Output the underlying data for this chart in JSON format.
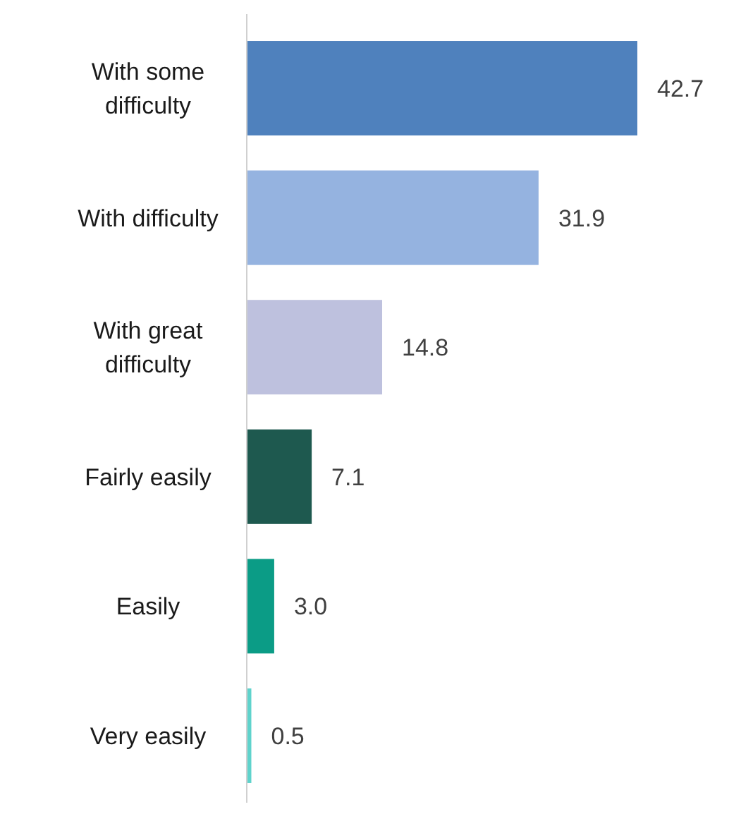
{
  "chart_data": {
    "type": "bar",
    "orientation": "horizontal",
    "categories": [
      "With some difficulty",
      "With difficulty",
      "With great difficulty",
      "Fairly easily",
      "Easily",
      "Very easily"
    ],
    "values": [
      42.7,
      31.9,
      14.8,
      7.1,
      3.0,
      0.5
    ],
    "value_labels": [
      "42.7",
      "31.9",
      "14.8",
      "7.1",
      "3.0",
      "0.5"
    ],
    "colors": [
      "#4f81bd",
      "#95b3e0",
      "#bec1de",
      "#1e594f",
      "#0b9c86",
      "#5fd3cc"
    ]
  }
}
